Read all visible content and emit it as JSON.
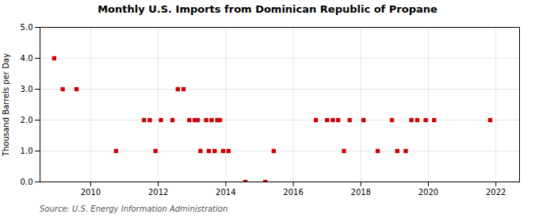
{
  "chart_data": {
    "type": "scatter",
    "title": "Monthly U.S. Imports from Dominican Republic of Propane",
    "ylabel": "Thousand Barrels per Day",
    "source": "Source: U.S. Energy Information Administration",
    "color": "#cc0000",
    "marker": "square",
    "grid": true,
    "xlim": [
      2008.5,
      2022.7
    ],
    "xticks": [
      2010,
      2012,
      2014,
      2016,
      2018,
      2020,
      2022
    ],
    "ylim": [
      0,
      5.0
    ],
    "yticks": [
      {
        "value": 0.0,
        "label": "0.0"
      },
      {
        "value": 1.0,
        "label": "1.0"
      },
      {
        "value": 2.0,
        "label": "2.0"
      },
      {
        "value": 3.0,
        "label": "3.0"
      },
      {
        "value": 4.0,
        "label": "4.0"
      },
      {
        "value": 5.0,
        "label": "5.0"
      }
    ],
    "x": [
      2008.92,
      2009.17,
      2009.58,
      2010.75,
      2011.58,
      2011.75,
      2011.92,
      2012.08,
      2012.42,
      2012.58,
      2012.75,
      2012.92,
      2013.08,
      2013.17,
      2013.25,
      2013.42,
      2013.5,
      2013.58,
      2013.67,
      2013.75,
      2013.83,
      2013.92,
      2014.08,
      2014.58,
      2015.17,
      2015.42,
      2016.67,
      2017.0,
      2017.17,
      2017.33,
      2017.5,
      2017.67,
      2018.08,
      2018.5,
      2018.92,
      2019.08,
      2019.33,
      2019.5,
      2019.67,
      2019.92,
      2020.17,
      2021.83
    ],
    "values": [
      4.0,
      3.0,
      3.0,
      1.0,
      2.0,
      2.0,
      1.0,
      2.0,
      2.0,
      3.0,
      3.0,
      2.0,
      2.0,
      2.0,
      1.0,
      2.0,
      1.0,
      2.0,
      1.0,
      2.0,
      2.0,
      1.0,
      1.0,
      0.0,
      0.0,
      1.0,
      2.0,
      2.0,
      2.0,
      2.0,
      1.0,
      2.0,
      2.0,
      1.0,
      2.0,
      1.0,
      1.0,
      2.0,
      2.0,
      2.0,
      2.0,
      2.0
    ]
  }
}
